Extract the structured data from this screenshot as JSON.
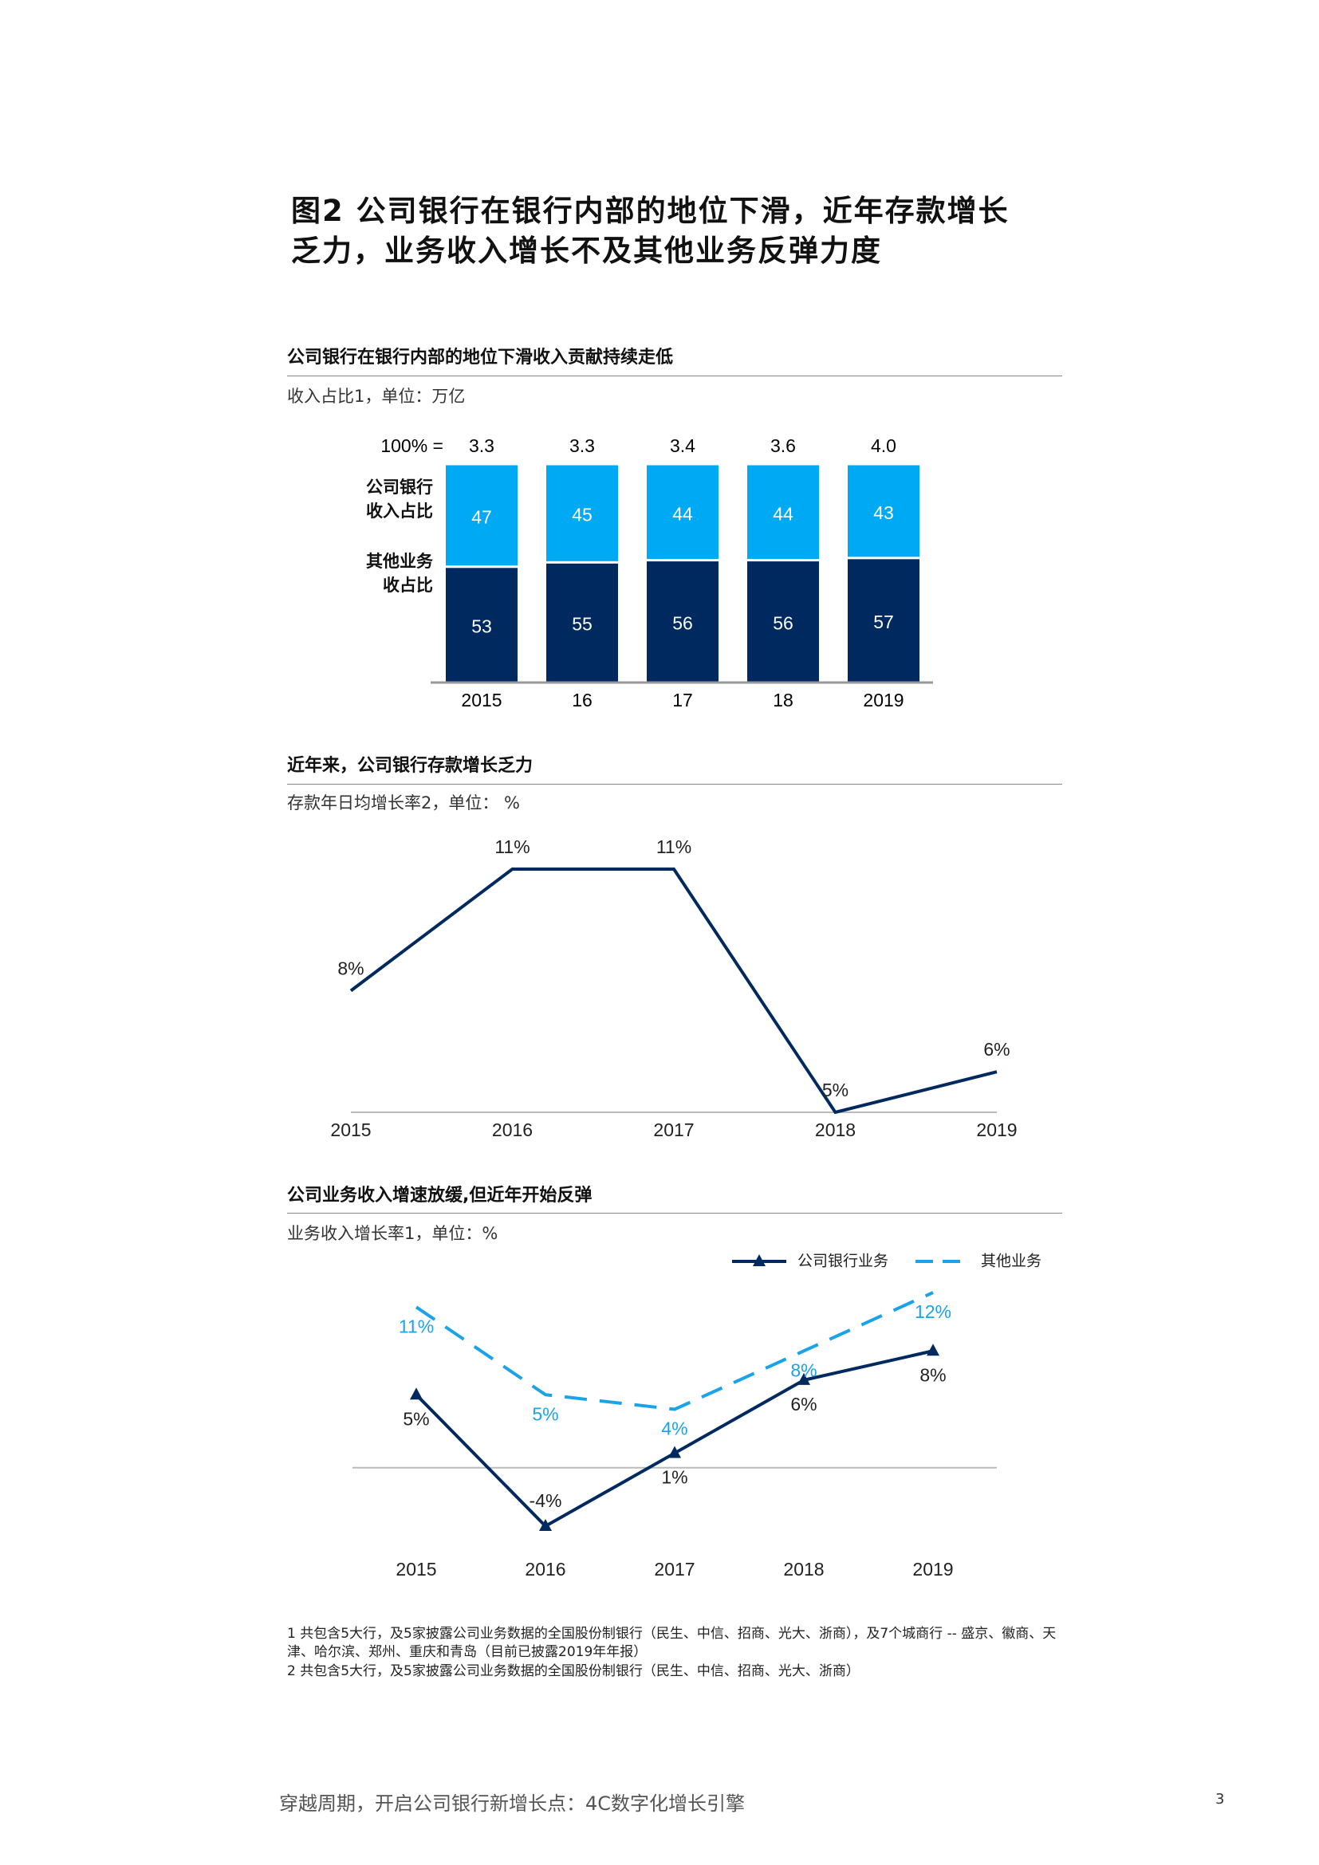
{
  "title": "图2 公司银行在银行内部的地位下滑，近年存款增长乏力，业务收入增长不及其他业务反弹力度",
  "chart_data": [
    {
      "type": "stacked_bar",
      "title": "公司银行在银行内部的地位下滑收入贡献持续走低",
      "subtitle": "收入占比1，单位：万亿",
      "categories": [
        "2015",
        "16",
        "17",
        "18",
        "2019"
      ],
      "series": [
        {
          "name": "其他业务收占比",
          "color": "#002960",
          "values": [
            53,
            55,
            56,
            56,
            57
          ]
        },
        {
          "name": "公司银行收入占比",
          "color": "#00a9f4",
          "values": [
            47,
            45,
            44,
            44,
            43
          ]
        }
      ],
      "totals": {
        "label": "100% =",
        "values": [
          3.3,
          3.3,
          3.4,
          3.6,
          4.0
        ],
        "value_labels": [
          "3.3",
          "3.3",
          "3.4",
          "3.6",
          "4.0"
        ]
      },
      "ylim": [
        0,
        100
      ]
    },
    {
      "type": "line",
      "title": "近年来，公司银行存款增长乏力",
      "subtitle": "存款年日均增长率2，单位： %",
      "categories": [
        "2015",
        "2016",
        "2017",
        "2018",
        "2019"
      ],
      "series": [
        {
          "color": "#002960",
          "values": [
            8,
            11,
            11,
            5,
            6
          ],
          "value_labels": [
            "8%",
            "11%",
            "11%",
            "5%",
            "6%"
          ]
        }
      ],
      "ylim": [
        5,
        11
      ]
    },
    {
      "type": "line",
      "title": "公司业务收入增速放缓,但近年开始反弹",
      "subtitle": "业务收入增长率1，单位：%",
      "categories": [
        "2015",
        "2016",
        "2017",
        "2018",
        "2019"
      ],
      "series": [
        {
          "name": "公司银行业务",
          "color": "#002960",
          "marker": "triangle",
          "values": [
            5,
            -4,
            1,
            6,
            8
          ],
          "value_labels": [
            "5%",
            "-4%",
            "1%",
            "6%",
            "8%"
          ]
        },
        {
          "name": "其他业务",
          "color": "#1aa3e8",
          "dash": true,
          "values": [
            11,
            5,
            4,
            8,
            12
          ],
          "value_labels": [
            "11%",
            "5%",
            "4%",
            "8%",
            "12%"
          ]
        }
      ],
      "ylim": [
        -4,
        12
      ]
    }
  ],
  "footnotes": [
    "1 共包含5大行，及5家披露公司业务数据的全国股份制银行（民生、中信、招商、光大、浙商），及7个城商行 -- 盛京、徽商、天津、哈尔滨、郑州、重庆和青岛（目前已披露2019年年报）",
    "2 共包含5大行，及5家披露公司业务数据的全国股份制银行（民生、中信、招商、光大、浙商）"
  ],
  "footer": "穿越周期，开启公司银行新增长点：4C数字化增长引擎",
  "page_number": "3"
}
